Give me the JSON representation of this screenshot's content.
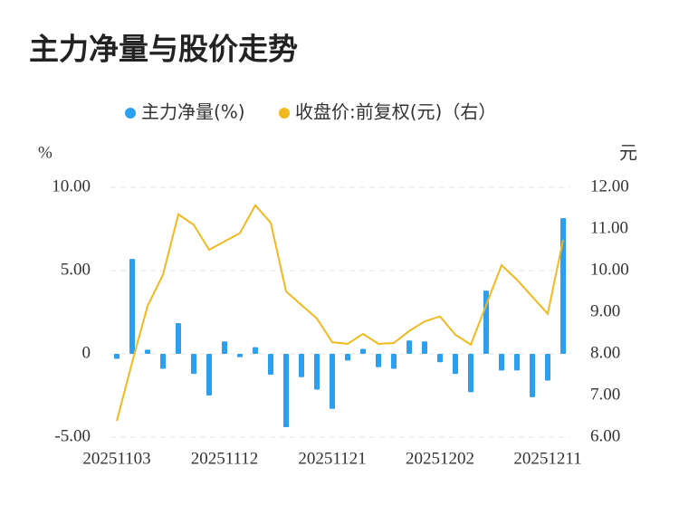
{
  "chart_data": {
    "type": "bar_line",
    "title": "主力净量与股价走势",
    "y_label": "%",
    "y2_label": "元",
    "categories": [
      "20251103",
      null,
      null,
      null,
      null,
      null,
      null,
      "20251112",
      null,
      null,
      null,
      null,
      null,
      null,
      "20251121",
      null,
      null,
      null,
      null,
      null,
      null,
      "20251202",
      null,
      null,
      null,
      null,
      null,
      null,
      "20251211",
      null
    ],
    "series": [
      {
        "name": "主力净量(%)",
        "color": "#2b9ff0",
        "type": "bar",
        "values": [
          -0.3,
          5.7,
          0.25,
          -0.9,
          1.85,
          -1.2,
          -2.5,
          0.75,
          -0.2,
          0.4,
          -1.25,
          -4.4,
          -1.4,
          -2.15,
          -3.3,
          -0.4,
          0.3,
          -0.8,
          -0.9,
          0.8,
          0.75,
          -0.5,
          -1.2,
          -2.3,
          3.8,
          -1.0,
          -1.0,
          -2.6,
          -1.6,
          8.15
        ]
      },
      {
        "name": "收盘价:前复权(元)（右）",
        "color": "#f2b91e",
        "type": "line",
        "axis": "y2",
        "values": [
          6.39,
          7.8,
          9.15,
          9.9,
          11.35,
          11.1,
          10.5,
          10.7,
          10.9,
          11.57,
          11.15,
          9.5,
          9.17,
          8.85,
          8.28,
          8.24,
          8.48,
          8.24,
          8.26,
          8.55,
          8.78,
          8.9,
          8.46,
          8.22,
          9.17,
          10.13,
          9.78,
          9.37,
          8.96,
          10.74
        ]
      }
    ],
    "ylim": [
      -5,
      10
    ],
    "yticks": [
      {
        "value": -5,
        "label": "-5.00"
      },
      0,
      {
        "value": 5,
        "label": "5.00"
      },
      {
        "value": 10,
        "label": "10.00"
      }
    ],
    "y2lim": [
      6,
      12
    ],
    "y2ticks": [
      {
        "value": 6,
        "label": "6.00"
      },
      {
        "value": 7,
        "label": "7.00"
      },
      {
        "value": 8,
        "label": "8.00"
      },
      {
        "value": 9,
        "label": "9.00"
      },
      {
        "value": 10,
        "label": "10.00"
      },
      {
        "value": 11,
        "label": "11.00"
      },
      {
        "value": 12,
        "label": "12.00"
      }
    ],
    "grid": true
  }
}
